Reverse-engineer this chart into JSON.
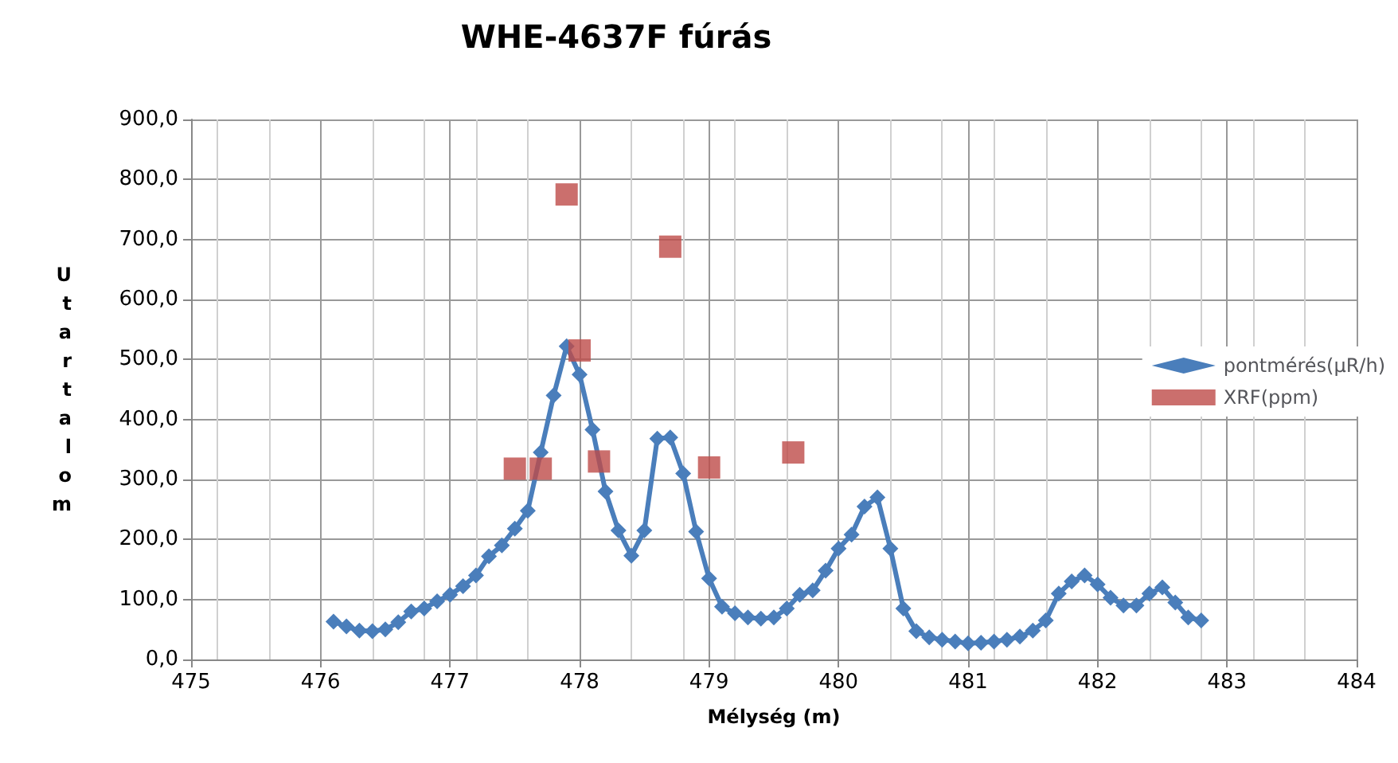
{
  "chart_data": {
    "type": "line",
    "title": "WHE-4637F fúrás",
    "xlabel": "Mélység (m)",
    "ylabel": "U tartalom",
    "xlim": [
      475,
      484
    ],
    "xticks": [
      475,
      476,
      477,
      478,
      479,
      480,
      481,
      482,
      483,
      484
    ],
    "ylim": [
      0,
      900
    ],
    "yticks": [
      {
        "value": 0,
        "label": "0,0"
      },
      {
        "value": 100,
        "label": "100,0"
      },
      {
        "value": 200,
        "label": "200,0"
      },
      {
        "value": 300,
        "label": "300,0"
      },
      {
        "value": 400,
        "label": "400,0"
      },
      {
        "value": 500,
        "label": "500,0"
      },
      {
        "value": 600,
        "label": "600,0"
      },
      {
        "value": 700,
        "label": "700,0"
      },
      {
        "value": 800,
        "label": "800,0"
      },
      {
        "value": 900,
        "label": "900,0"
      }
    ],
    "grid": true,
    "legend": "right",
    "series": [
      {
        "name": "pontmérés(μR/h)",
        "marker": "diamond",
        "color": "#4a7ebb",
        "x": [
          476.1,
          476.2,
          476.3,
          476.4,
          476.5,
          476.6,
          476.7,
          476.8,
          476.9,
          477.0,
          477.1,
          477.2,
          477.3,
          477.4,
          477.5,
          477.6,
          477.7,
          477.8,
          477.9,
          478.0,
          478.1,
          478.2,
          478.3,
          478.4,
          478.5,
          478.6,
          478.7,
          478.8,
          478.9,
          479.0,
          479.1,
          479.2,
          479.3,
          479.4,
          479.5,
          479.6,
          479.7,
          479.8,
          479.9,
          480.0,
          480.1,
          480.2,
          480.3,
          480.4,
          480.5,
          480.6,
          480.7,
          480.8,
          480.9,
          481.0,
          481.1,
          481.2,
          481.3,
          481.4,
          481.5,
          481.6,
          481.7,
          481.8,
          481.9,
          482.0,
          482.1,
          482.2,
          482.3,
          482.4,
          482.5,
          482.6,
          482.7,
          482.8
        ],
        "values": [
          63,
          55,
          48,
          47,
          50,
          62,
          80,
          85,
          97,
          108,
          122,
          140,
          172,
          190,
          218,
          248,
          345,
          440,
          522,
          475,
          383,
          280,
          215,
          173,
          215,
          368,
          370,
          310,
          213,
          135,
          88,
          77,
          70,
          68,
          70,
          85,
          108,
          115,
          148,
          185,
          208,
          255,
          270,
          185,
          85,
          47,
          37,
          33,
          30,
          27,
          28,
          30,
          33,
          38,
          48,
          65,
          110,
          130,
          140,
          125,
          103,
          90,
          90,
          110,
          120,
          95,
          70,
          65
        ]
      },
      {
        "name": "XRF(ppm)",
        "type": "scatter",
        "marker": "square",
        "color": "#be4b48",
        "x": [
          477.5,
          477.7,
          477.9,
          478.0,
          478.15,
          478.7,
          479.0,
          479.65
        ],
        "values": [
          318,
          318,
          775,
          515,
          330,
          688,
          320,
          345
        ]
      }
    ]
  }
}
